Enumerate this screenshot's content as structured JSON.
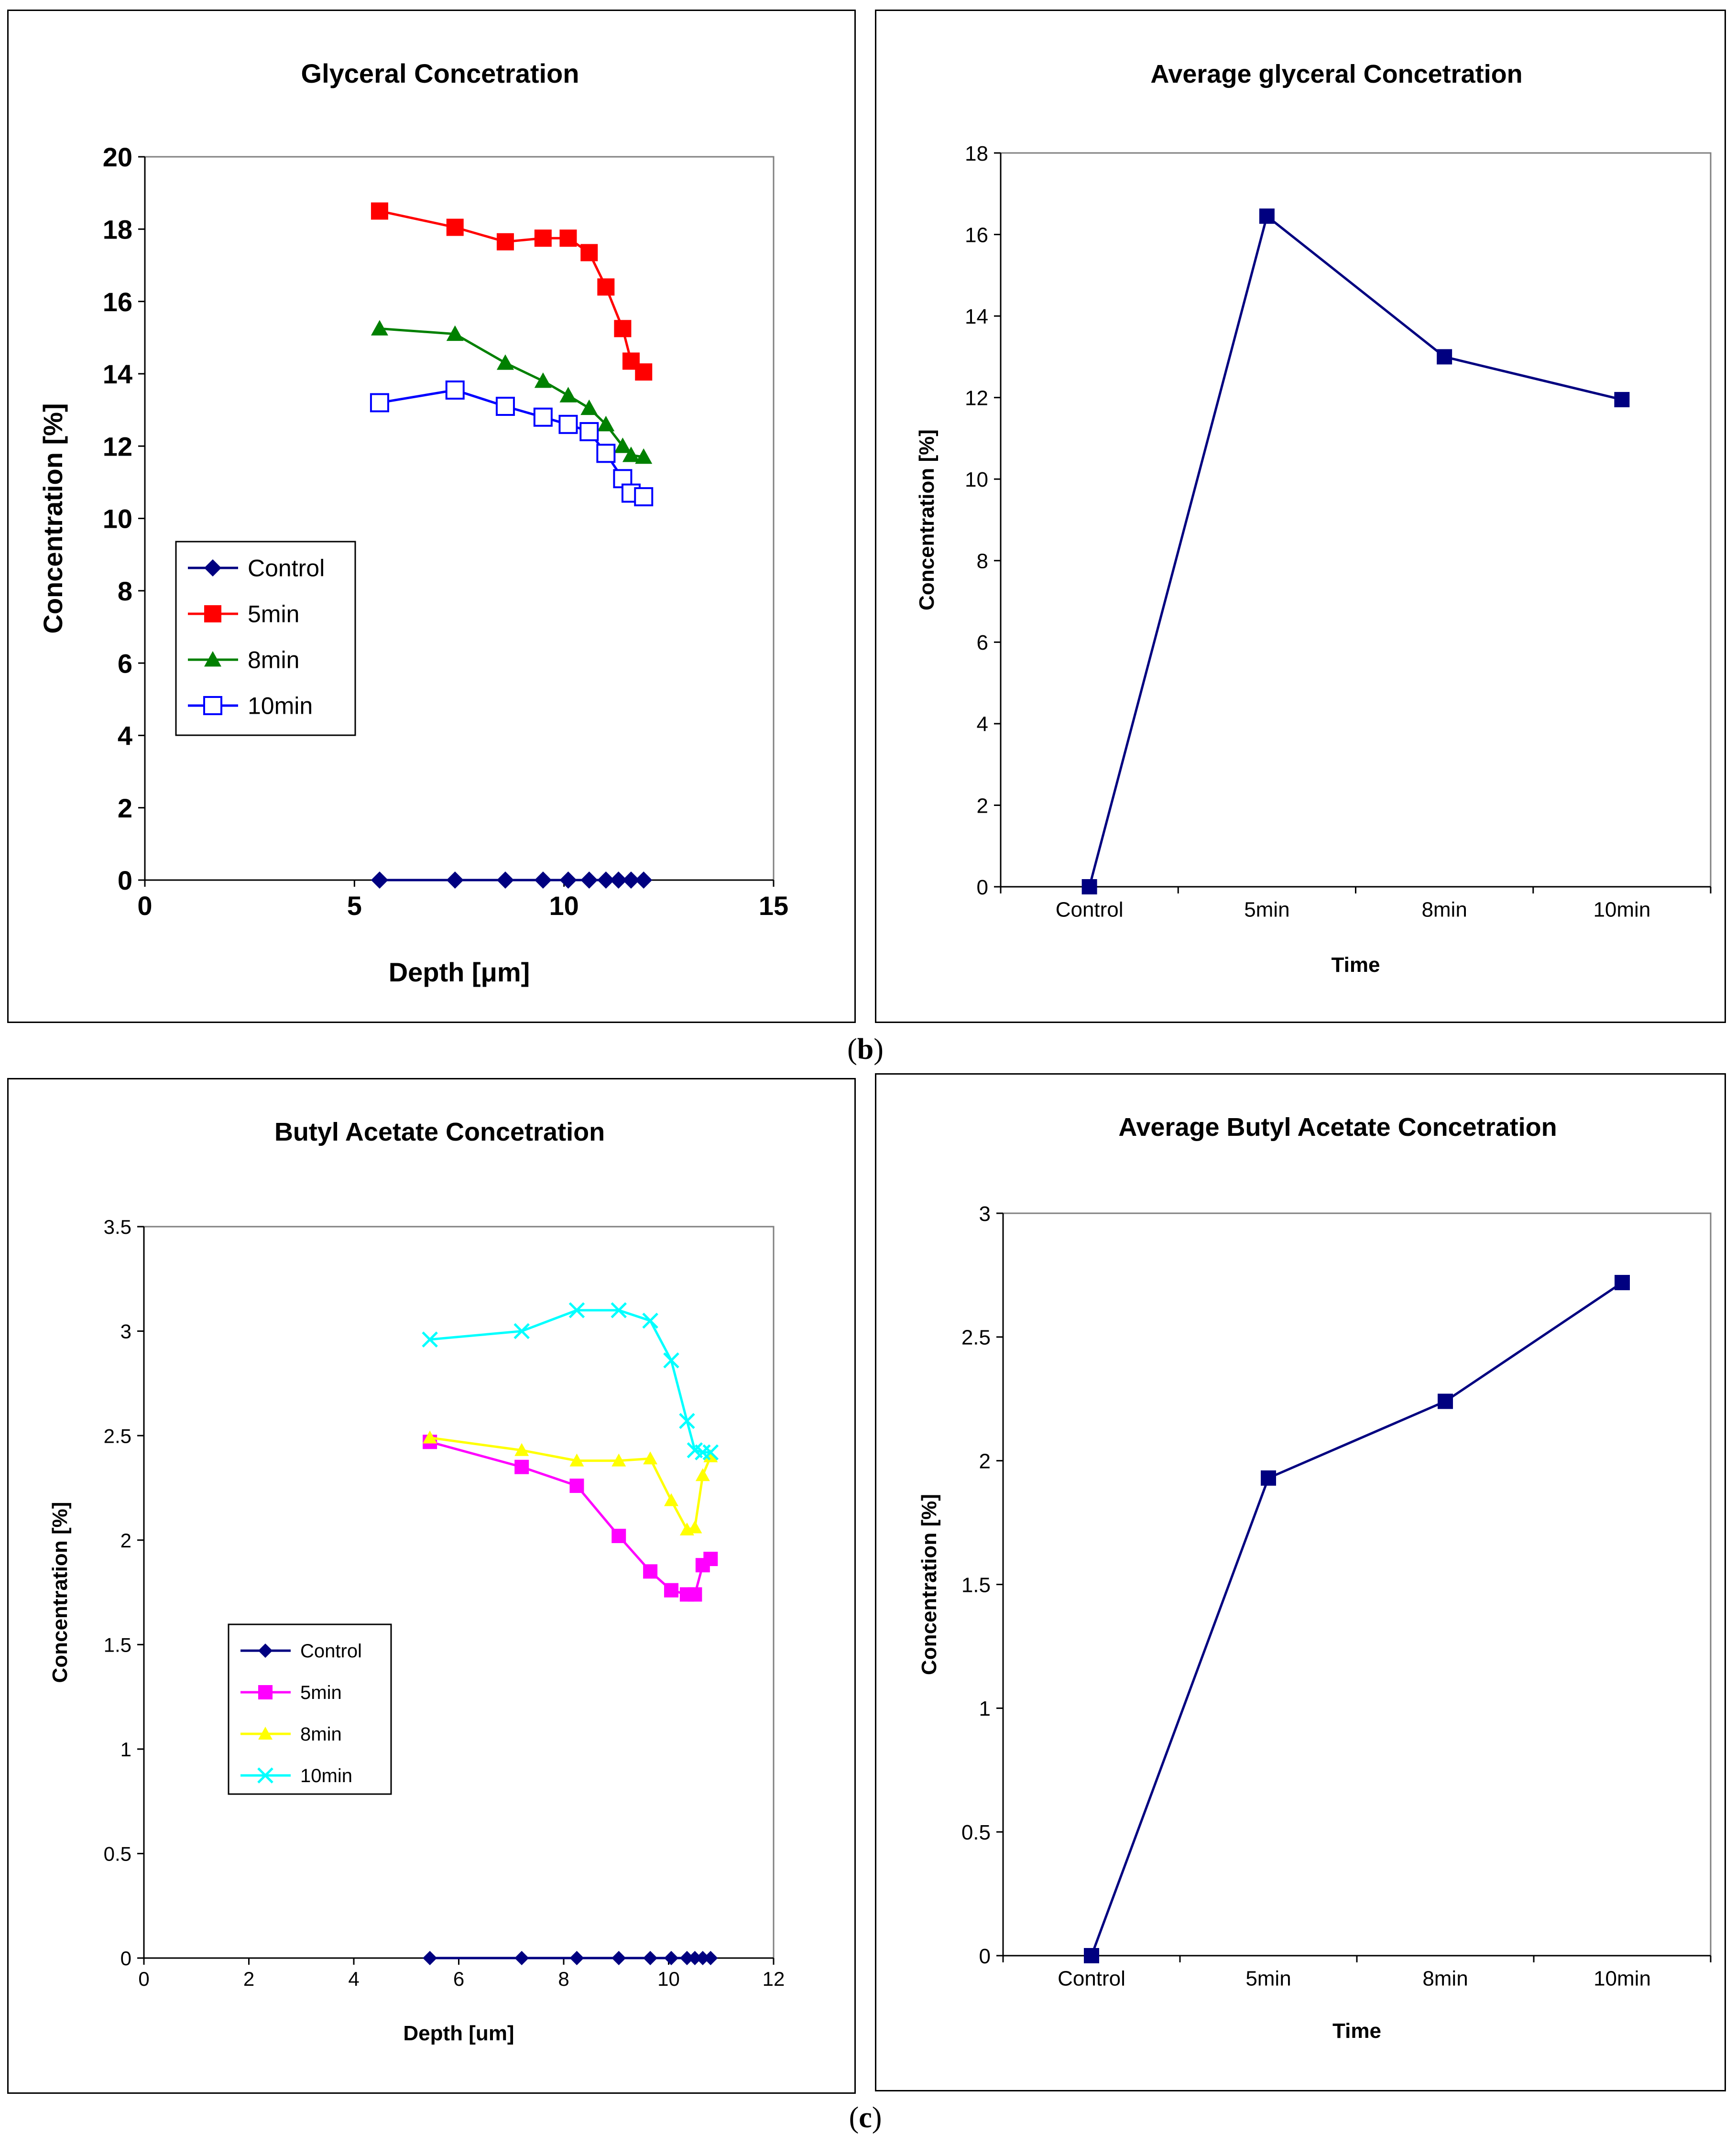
{
  "figure": {
    "caption_b": "b",
    "caption_c": "c"
  },
  "colors": {
    "control": "#000080",
    "series_5min_a": "#ff0000",
    "series_8min_a": "#008000",
    "series_10min_a": "#0000ff",
    "series_5min_c": "#ff00ff",
    "series_8min_c": "#ffff00",
    "series_10min_c": "#00ffff",
    "avg": "#000080"
  },
  "chart_data": [
    {
      "id": "glycerol_depth",
      "type": "scatter",
      "title": "Glyceral Concetration",
      "xlabel": "Depth [μm]",
      "ylabel": "Concentration [%]",
      "xlim": [
        0,
        15
      ],
      "ylim": [
        0,
        20
      ],
      "xticks": [
        "0",
        "5",
        "10",
        "15"
      ],
      "yticks": [
        "0",
        "2",
        "4",
        "6",
        "8",
        "10",
        "12",
        "14",
        "16",
        "18",
        "20"
      ],
      "legend_position": "lower-left",
      "series": [
        {
          "name": "Control",
          "marker": "diamond",
          "color": "#000080",
          "x": [
            5.6,
            7.4,
            8.6,
            9.5,
            10.1,
            10.6,
            11.0,
            11.3,
            11.6,
            11.9
          ],
          "y": [
            0,
            0,
            0,
            0,
            0,
            0,
            0,
            0,
            0,
            0
          ]
        },
        {
          "name": "5min",
          "marker": "square",
          "color": "#ff0000",
          "x": [
            5.6,
            7.4,
            8.6,
            9.5,
            10.1,
            10.6,
            11.0,
            11.4,
            11.6,
            11.9
          ],
          "y": [
            18.5,
            18.05,
            17.65,
            17.75,
            17.75,
            17.35,
            16.4,
            15.25,
            14.35,
            14.05
          ]
        },
        {
          "name": "8min",
          "marker": "triangle",
          "color": "#008000",
          "x": [
            5.6,
            7.4,
            8.6,
            9.5,
            10.1,
            10.6,
            11.0,
            11.4,
            11.6,
            11.9
          ],
          "y": [
            15.25,
            15.1,
            14.3,
            13.8,
            13.4,
            13.05,
            12.6,
            12.0,
            11.75,
            11.7
          ]
        },
        {
          "name": "10min",
          "marker": "square-open",
          "color": "#0000ff",
          "x": [
            5.6,
            7.4,
            8.6,
            9.5,
            10.1,
            10.6,
            11.0,
            11.4,
            11.6,
            11.9
          ],
          "y": [
            13.2,
            13.55,
            13.1,
            12.8,
            12.6,
            12.4,
            11.8,
            11.1,
            10.7,
            10.6
          ]
        }
      ]
    },
    {
      "id": "glycerol_avg",
      "type": "line",
      "title": "Average glyceral Concetration",
      "xlabel": "Time",
      "ylabel": "Concentration [%]",
      "categories": [
        "Control",
        "5min",
        "8min",
        "10min"
      ],
      "ylim": [
        0,
        18
      ],
      "yticks": [
        "0",
        "2",
        "4",
        "6",
        "8",
        "10",
        "12",
        "14",
        "16",
        "18"
      ],
      "series": [
        {
          "marker": "square",
          "color": "#000080",
          "values": [
            0,
            16.45,
            13.0,
            11.95
          ]
        }
      ]
    },
    {
      "id": "butyl_depth",
      "type": "scatter",
      "title": "Butyl Acetate Concetration",
      "xlabel": "Depth [um]",
      "ylabel": "Concentration [%]",
      "xlim": [
        0,
        12
      ],
      "ylim": [
        0,
        3.5
      ],
      "xticks": [
        "0",
        "2",
        "4",
        "6",
        "8",
        "10",
        "12"
      ],
      "yticks": [
        "0",
        "0.5",
        "1",
        "1.5",
        "2",
        "2.5",
        "3",
        "3.5"
      ],
      "legend_position": "lower-left",
      "series": [
        {
          "name": "Control",
          "marker": "diamond",
          "color": "#000080",
          "x": [
            5.45,
            7.2,
            8.25,
            9.05,
            9.65,
            10.05,
            10.35,
            10.5,
            10.65,
            10.8
          ],
          "y": [
            0,
            0,
            0,
            0,
            0,
            0,
            0,
            0,
            0,
            0
          ]
        },
        {
          "name": "5min",
          "marker": "square",
          "color": "#ff00ff",
          "x": [
            5.45,
            7.2,
            8.25,
            9.05,
            9.65,
            10.05,
            10.35,
            10.5,
            10.65,
            10.8
          ],
          "y": [
            2.47,
            2.35,
            2.26,
            2.02,
            1.85,
            1.76,
            1.74,
            1.74,
            1.88,
            1.91
          ]
        },
        {
          "name": "8min",
          "marker": "triangle",
          "color": "#ffff00",
          "x": [
            5.45,
            7.2,
            8.25,
            9.05,
            9.65,
            10.05,
            10.35,
            10.5,
            10.65,
            10.8
          ],
          "y": [
            2.49,
            2.43,
            2.38,
            2.38,
            2.39,
            2.19,
            2.05,
            2.06,
            2.31,
            2.4
          ]
        },
        {
          "name": "10min",
          "marker": "x",
          "color": "#00ffff",
          "x": [
            5.45,
            7.2,
            8.25,
            9.05,
            9.65,
            10.05,
            10.35,
            10.5,
            10.65,
            10.8
          ],
          "y": [
            2.96,
            3.0,
            3.1,
            3.1,
            3.05,
            2.86,
            2.57,
            2.43,
            2.42,
            2.42
          ]
        }
      ]
    },
    {
      "id": "butyl_avg",
      "type": "line",
      "title": "Average Butyl Acetate Concetration",
      "xlabel": "Time",
      "ylabel": "Concentration [%]",
      "categories": [
        "Control",
        "5min",
        "8min",
        "10min"
      ],
      "ylim": [
        0,
        3
      ],
      "yticks": [
        "0",
        "0.5",
        "1",
        "1.5",
        "2",
        "2.5",
        "3"
      ],
      "series": [
        {
          "marker": "square",
          "color": "#000080",
          "values": [
            0,
            1.93,
            2.24,
            2.72
          ]
        }
      ]
    }
  ]
}
